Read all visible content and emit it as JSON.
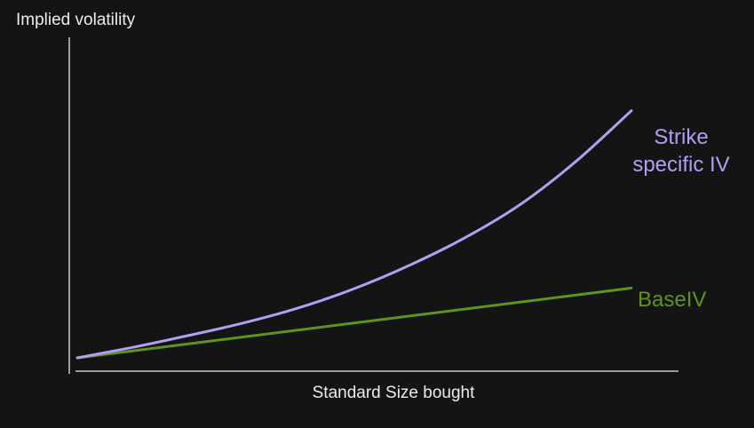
{
  "chart_data": {
    "type": "line",
    "title": "",
    "ylabel": "Implied volatility",
    "xlabel": "Standard Size bought",
    "xlim": [
      0,
      1
    ],
    "ylim": [
      0,
      1
    ],
    "grid": false,
    "legend": "inline labels at line ends",
    "series": [
      {
        "name": "Strike specific IV",
        "label_lines": [
          "Strike",
          "specific IV"
        ],
        "color": "#b39ef0",
        "x": [
          0.0,
          0.1,
          0.2,
          0.3,
          0.4,
          0.5,
          0.6,
          0.7,
          0.8,
          0.9,
          1.0
        ],
        "y": [
          0.0,
          0.034,
          0.072,
          0.113,
          0.162,
          0.224,
          0.3,
          0.389,
          0.497,
          0.636,
          0.8
        ]
      },
      {
        "name": "BaseIV",
        "label_lines": [
          "BaseIV"
        ],
        "color": "#5e941c",
        "x": [
          0.0,
          1.0
        ],
        "y": [
          0.0,
          0.226
        ]
      }
    ]
  },
  "colors": {
    "background": "#141414",
    "axis": "#e6e6e6",
    "text": "#ececec"
  }
}
